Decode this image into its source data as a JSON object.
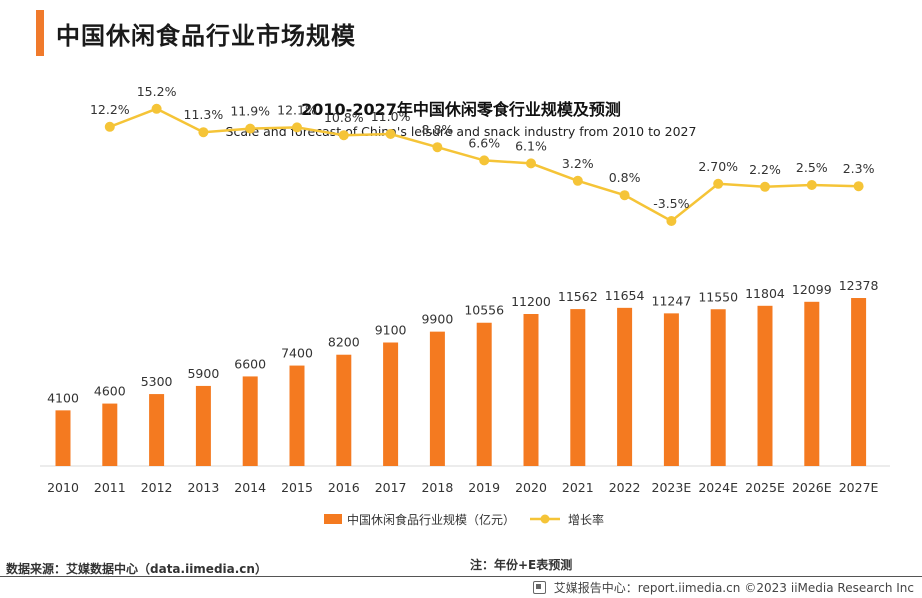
{
  "heading": "中国休闲食品行业市场规模",
  "chart_data": {
    "type": "bar+line",
    "title": "2010-2027年中国休闲零食行业规模及预测",
    "subtitle": "Scale and forecast of China's leisure and snack industry from 2010 to 2027",
    "categories": [
      "2010",
      "2011",
      "2012",
      "2013",
      "2014",
      "2015",
      "2016",
      "2017",
      "2018",
      "2019",
      "2020",
      "2021",
      "2022",
      "2023E",
      "2024E",
      "2025E",
      "2026E",
      "2027E"
    ],
    "series": [
      {
        "name": "中国休闲食品行业规模（亿元）",
        "type": "bar",
        "color": "#f47a20",
        "values": [
          4100,
          4600,
          5300,
          5900,
          6600,
          7400,
          8200,
          9100,
          9900,
          10556,
          11200,
          11562,
          11654,
          11247,
          11550,
          11804,
          12099,
          12378
        ],
        "labels": [
          "4100",
          "4600",
          "5300",
          "5900",
          "6600",
          "7400",
          "8200",
          "9100",
          "9900",
          "10556",
          "11200",
          "11562",
          "11654",
          "11247",
          "11550",
          "11804",
          "12099",
          "12378"
        ]
      },
      {
        "name": "增长率",
        "type": "line",
        "color": "#f5c437",
        "values": [
          null,
          12.2,
          15.2,
          11.3,
          11.9,
          12.1,
          10.8,
          11.0,
          8.8,
          6.6,
          6.1,
          3.2,
          0.8,
          -3.5,
          2.7,
          2.2,
          2.5,
          2.3
        ],
        "labels": [
          "",
          "12.2%",
          "15.2%",
          "11.3%",
          "11.9%",
          "12.1%",
          "10.8%",
          "11.0%",
          "8.8%",
          "6.6%",
          "6.1%",
          "3.2%",
          "0.8%",
          "-3.5%",
          "2.70%",
          "2.2%",
          "2.5%",
          "2.3%"
        ]
      }
    ],
    "legend_position": "bottom",
    "grid": false
  },
  "source": "数据来源：艾媒数据中心（data.iimedia.cn）",
  "note": "注：年份+E表预测",
  "footer": {
    "report_label": "艾媒报告中心：report.iimedia.cn",
    "copyright": "©2023",
    "company": "iiMedia Research Inc"
  }
}
